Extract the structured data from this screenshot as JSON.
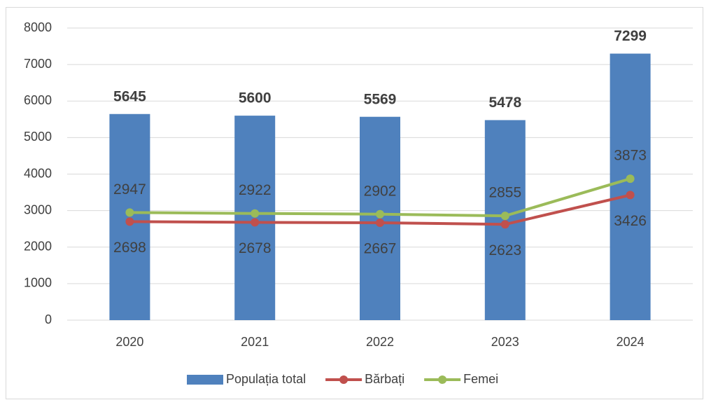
{
  "chart_data": {
    "type": "bar",
    "categories": [
      "2020",
      "2021",
      "2022",
      "2023",
      "2024"
    ],
    "series": [
      {
        "name": "Populația total",
        "type": "bar",
        "color": "#4f81bd",
        "values": [
          5645,
          5600,
          5569,
          5478,
          7299
        ]
      },
      {
        "name": "Bărbați",
        "type": "line",
        "color": "#c0504d",
        "values": [
          2698,
          2678,
          2667,
          2623,
          3426
        ]
      },
      {
        "name": "Femei",
        "type": "line",
        "color": "#9bbb59",
        "values": [
          2947,
          2922,
          2902,
          2855,
          3873
        ]
      }
    ],
    "ylim": [
      0,
      8000
    ],
    "yticks": [
      0,
      1000,
      2000,
      3000,
      4000,
      5000,
      6000,
      7000,
      8000
    ],
    "grid": true,
    "legend": "bottom"
  }
}
